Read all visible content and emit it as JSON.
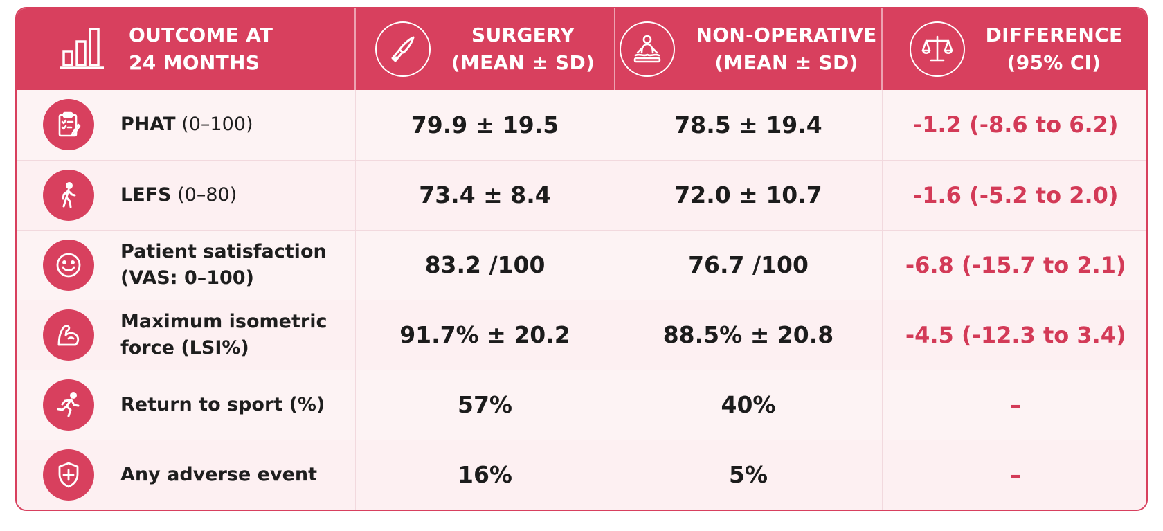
{
  "chart_data": {
    "type": "table",
    "header": {
      "outcome_line1": "OUTCOME AT",
      "outcome_line2": "24 MONTHS",
      "surgery_line1": "SURGERY",
      "surgery_line2": "(MEAN ± SD)",
      "nonop_line1": "NON-OPERATIVE",
      "nonop_line2": "(MEAN ± SD)",
      "diff_line1": "DIFFERENCE",
      "diff_line2": "(95% CI)"
    },
    "header_icons": [
      "bar-chart-icon",
      "scalpel-icon",
      "physiotherapy-icon",
      "balance-scale-icon"
    ],
    "rows": [
      {
        "icon": "clipboard-icon",
        "label_main": "PHAT",
        "label_rest": " (0–100)",
        "label_line2": "",
        "surgery": "79.9 ± 19.5",
        "non_operative": "78.5 ± 19.4",
        "difference": "-1.2 (-8.6 to 6.2)"
      },
      {
        "icon": "walking-person-icon",
        "label_main": "LEFS",
        "label_rest": " (0–80)",
        "label_line2": "",
        "surgery": "73.4 ± 8.4",
        "non_operative": "72.0 ± 10.7",
        "difference": "-1.6 (-5.2 to 2.0)"
      },
      {
        "icon": "smiley-icon",
        "label_main": "Patient satisfaction",
        "label_rest": "",
        "label_line2": "(VAS: 0–100)",
        "surgery": "83.2 /100",
        "non_operative": "76.7 /100",
        "difference": "-6.8 (-15.7 to 2.1)"
      },
      {
        "icon": "flexed-arm-icon",
        "label_main": "Maximum isometric",
        "label_rest": "",
        "label_line2": "force (LSI%)",
        "surgery": "91.7% ± 20.2",
        "non_operative": "88.5% ± 20.8",
        "difference": "-4.5 (-12.3 to 3.4)"
      },
      {
        "icon": "running-person-icon",
        "label_main": "Return to sport (%)",
        "label_rest": "",
        "label_line2": "",
        "surgery": "57%",
        "non_operative": "40%",
        "difference": "–"
      },
      {
        "icon": "shield-plus-icon",
        "label_main": "Any adverse event",
        "label_rest": "",
        "label_line2": "",
        "surgery": "16%",
        "non_operative": "5%",
        "difference": "–"
      }
    ]
  },
  "colors": {
    "accent": "#d8405e",
    "row_bg": "#fdf3f4",
    "difference_text": "#d33a57"
  }
}
